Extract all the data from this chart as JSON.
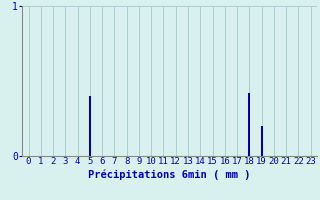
{
  "hours": [
    0,
    1,
    2,
    3,
    4,
    5,
    6,
    7,
    8,
    9,
    10,
    11,
    12,
    13,
    14,
    15,
    16,
    17,
    18,
    19,
    20,
    21,
    22,
    23
  ],
  "values": [
    0,
    0,
    0,
    0,
    0,
    0.4,
    0,
    0,
    0,
    0,
    0,
    0,
    0,
    0,
    0,
    0,
    0,
    0,
    0.42,
    0.2,
    0,
    0,
    0,
    0
  ],
  "bar_color": "#0000bb",
  "background_color": "#d8f0ee",
  "grid_color": "#aacece",
  "axis_color": "#888888",
  "tick_color": "#0000bb",
  "xlabel": "Précipitations 6min ( mm )",
  "xlabel_color": "#0000bb",
  "ylim": [
    0,
    1
  ],
  "xlim": [
    -0.5,
    23.5
  ],
  "yticks": [
    0,
    1
  ],
  "xticks": [
    0,
    1,
    2,
    3,
    4,
    5,
    6,
    7,
    8,
    9,
    10,
    11,
    12,
    13,
    14,
    15,
    16,
    17,
    18,
    19,
    20,
    21,
    22,
    23
  ],
  "xlabel_fontsize": 7.5,
  "tick_fontsize": 6.5,
  "bar_width": 0.15
}
